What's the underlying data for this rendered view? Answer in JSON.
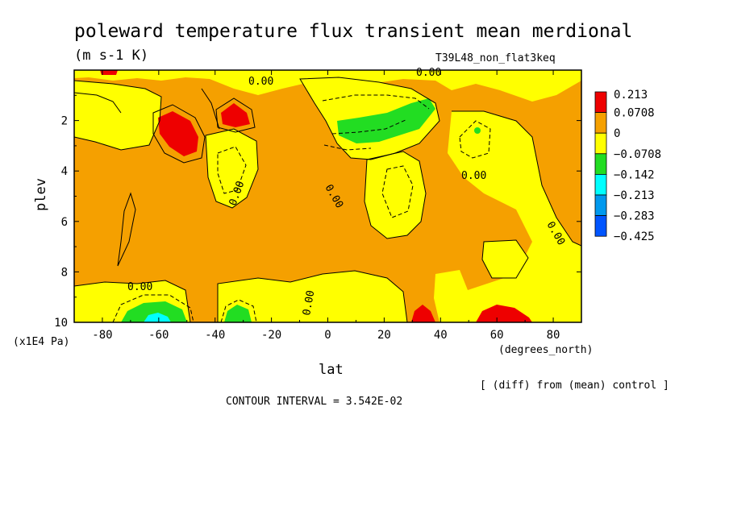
{
  "chart_data": {
    "type": "heatmap",
    "title": "poleward temperature flux transient mean merdional",
    "units": "(m s-1 K)",
    "run_label": "T39L48_non_flat3keq",
    "xlabel": "lat",
    "x_units": "(degrees_north)",
    "ylabel": "plev",
    "y_units": "(x1E4 Pa)",
    "xlim": [
      -90,
      90
    ],
    "ylim": [
      10,
      0
    ],
    "x_ticks": [
      "-80",
      "-60",
      "-40",
      "-20",
      "0",
      "20",
      "40",
      "60",
      "80"
    ],
    "y_ticks": [
      "2",
      "4",
      "6",
      "8",
      "10"
    ],
    "contour_interval_text": "CONTOUR INTERVAL = 3.542E-02",
    "diff_note": "[ (diff) from (mean) control ]",
    "contour_labels": [
      "0.00",
      "0.00",
      "0.00",
      "0.00",
      "0.00",
      "0.00",
      "0.00",
      "0.00"
    ],
    "colorbar": {
      "levels": [
        "0.213",
        "0.0708",
        "0",
        "−0.0708",
        "−0.142",
        "−0.213",
        "−0.283",
        "−0.425"
      ],
      "colors": [
        "#ee0000",
        "#f5a000",
        "#ffff00",
        "#22dd22",
        "#00ffff",
        "#0099ee",
        "#0055ff"
      ]
    },
    "features": [
      {
        "name": "positive-max-sh-upper",
        "lat": -55,
        "plev": 2.6,
        "level": "red"
      },
      {
        "name": "positive-max-sh-upper-2",
        "lat": -32,
        "plev": 1.8,
        "level": "red"
      },
      {
        "name": "positive-max-nh-surface-30",
        "lat": 32,
        "plev": 9.8,
        "level": "red"
      },
      {
        "name": "positive-max-nh-surface-60",
        "lat": 60,
        "plev": 9.8,
        "level": "red"
      },
      {
        "name": "negative-min-nh-upper",
        "lat": 25,
        "plev": 2.2,
        "level": "green"
      },
      {
        "name": "negative-min-sh-surface-60",
        "lat": -62,
        "plev": 9.8,
        "level": "cyan"
      },
      {
        "name": "negative-min-sh-surface-35",
        "lat": -35,
        "plev": 9.8,
        "level": "green"
      }
    ]
  }
}
